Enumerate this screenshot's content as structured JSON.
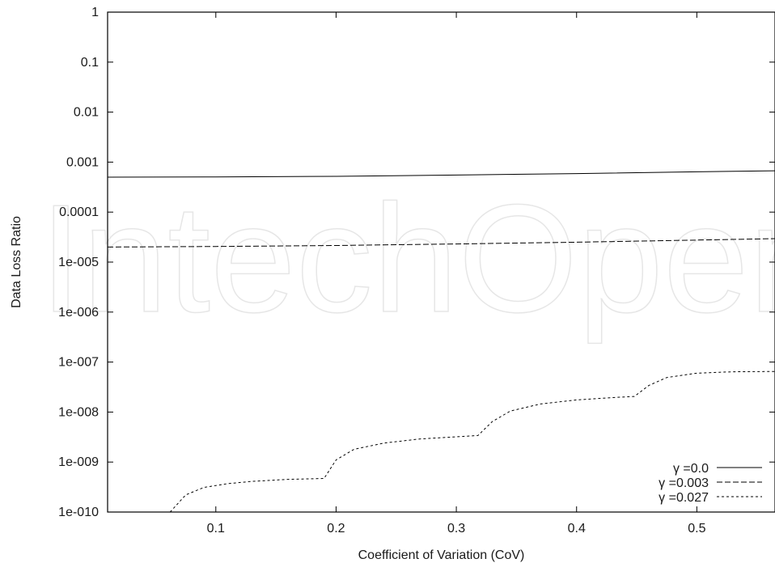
{
  "chart_data": {
    "type": "line",
    "xlabel": "Coefficient of Variation (CoV)",
    "ylabel": "Data Loss Ratio",
    "xlim": [
      0.01,
      0.565
    ],
    "ylim": [
      1e-10,
      1
    ],
    "yscale": "log",
    "xticks": [
      0.1,
      0.2,
      0.3,
      0.4,
      0.5
    ],
    "xtick_labels": [
      "0.1",
      "0.2",
      "0.3",
      "0.4",
      "0.5"
    ],
    "yticks": [
      1e-10,
      1e-09,
      1e-08,
      1e-07,
      1e-06,
      1e-05,
      0.0001,
      0.001,
      0.01,
      0.1,
      1
    ],
    "ytick_labels": [
      "1e-010",
      "1e-009",
      "1e-008",
      "1e-007",
      "1e-006",
      "1e-005",
      "0.0001",
      "0.001",
      "0.01",
      "0.1",
      "1"
    ],
    "grid": false,
    "legend_position": "bottom-right",
    "watermark": "IntechOpen",
    "series": [
      {
        "name": "γ =0.0",
        "dash": "solid",
        "x": [
          0.01,
          0.1,
          0.2,
          0.3,
          0.4,
          0.5,
          0.565
        ],
        "y": [
          0.0005,
          0.000505,
          0.00052,
          0.00055,
          0.00059,
          0.00064,
          0.00067
        ]
      },
      {
        "name": "γ =0.003",
        "dash": "long",
        "x": [
          0.01,
          0.1,
          0.2,
          0.3,
          0.4,
          0.5,
          0.565
        ],
        "y": [
          2e-05,
          2.05e-05,
          2.15e-05,
          2.3e-05,
          2.5e-05,
          2.75e-05,
          2.95e-05
        ]
      },
      {
        "name": "γ =0.027",
        "dash": "short",
        "x": [
          0.062,
          0.075,
          0.09,
          0.11,
          0.13,
          0.16,
          0.19,
          0.2,
          0.215,
          0.24,
          0.27,
          0.3,
          0.318,
          0.33,
          0.345,
          0.37,
          0.4,
          0.43,
          0.448,
          0.46,
          0.475,
          0.5,
          0.53,
          0.565
        ],
        "y": [
          1e-10,
          2.2e-10,
          3.1e-10,
          3.7e-10,
          4.1e-10,
          4.5e-10,
          4.7e-10,
          1.1e-09,
          1.8e-09,
          2.4e-09,
          2.9e-09,
          3.2e-09,
          3.4e-09,
          6.5e-09,
          1.05e-08,
          1.45e-08,
          1.75e-08,
          1.95e-08,
          2.05e-08,
          3.4e-08,
          4.9e-08,
          6e-08,
          6.4e-08,
          6.5e-08
        ]
      }
    ]
  }
}
